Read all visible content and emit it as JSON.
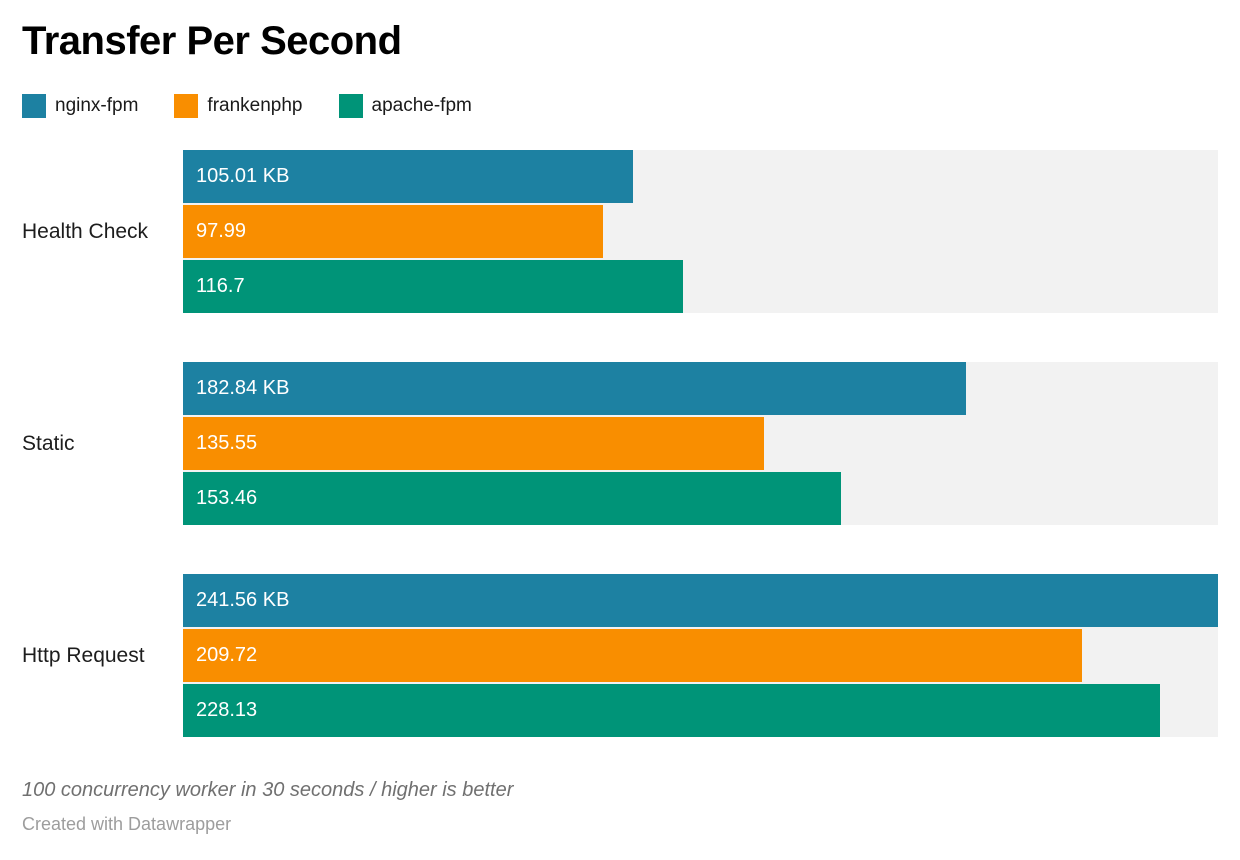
{
  "title": "Transfer Per Second",
  "legend": [
    {
      "label": "nginx-fpm",
      "color": "#1d81a2"
    },
    {
      "label": "frankenphp",
      "color": "#f98e00"
    },
    {
      "label": "apache-fpm",
      "color": "#009478"
    }
  ],
  "chart_data": {
    "type": "bar",
    "orientation": "horizontal",
    "title": "Transfer Per Second",
    "categories": [
      "Health Check",
      "Static",
      "Http Request"
    ],
    "series": [
      {
        "name": "nginx-fpm",
        "color": "#1d81a2",
        "values": [
          105.01,
          182.84,
          241.56
        ],
        "value_labels": [
          "105.01 KB",
          "182.84 KB",
          "241.56 KB"
        ]
      },
      {
        "name": "frankenphp",
        "color": "#f98e00",
        "values": [
          97.99,
          135.55,
          209.72
        ],
        "value_labels": [
          "97.99",
          "135.55",
          "209.72"
        ]
      },
      {
        "name": "apache-fpm",
        "color": "#009478",
        "values": [
          116.7,
          153.46,
          228.13
        ],
        "value_labels": [
          "116.7",
          "153.46",
          "228.13"
        ]
      }
    ],
    "unit": "KB",
    "xlim": [
      0,
      241.56
    ],
    "track_color": "#f2f2f2",
    "grid": false,
    "legend_position": "top",
    "value_labels_inside_bars": true
  },
  "footer": {
    "note": "100 concurrency worker in 30 seconds / higher is better",
    "attribution": "Created with Datawrapper"
  }
}
